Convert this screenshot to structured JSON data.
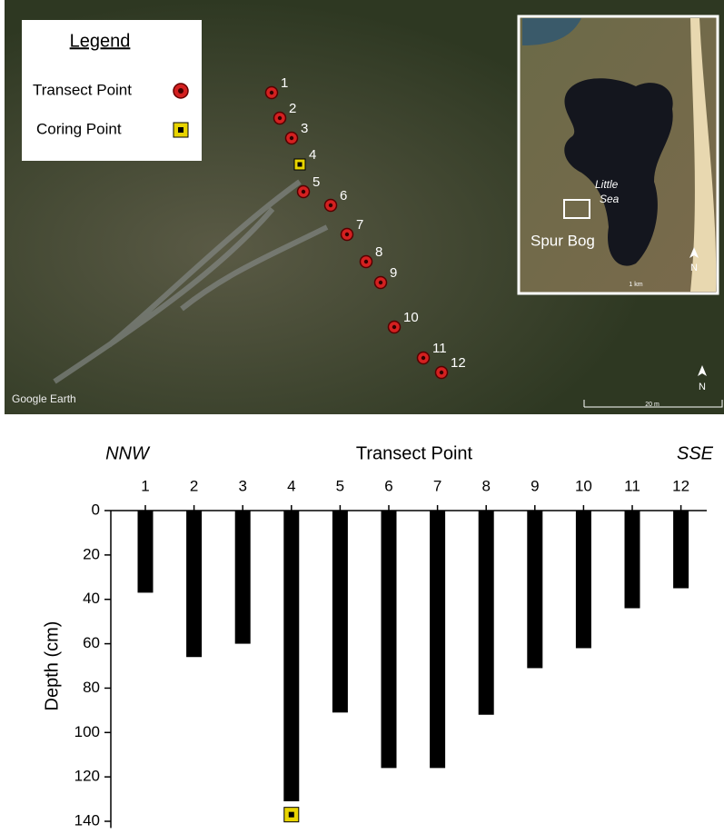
{
  "map": {
    "legend": {
      "title": "Legend",
      "items": [
        "Transect Point",
        "Coring Point"
      ]
    },
    "points": [
      "1",
      "2",
      "3",
      "4",
      "5",
      "6",
      "7",
      "8",
      "9",
      "10",
      "11",
      "12"
    ],
    "attribution": "Google Earth",
    "scale_label": "20 m",
    "north": "N",
    "inset": {
      "lake": [
        "Little",
        "Sea"
      ],
      "site": "Spur Bog",
      "scale_label": "1 km",
      "north": "N"
    }
  },
  "chart_data": {
    "type": "bar",
    "title": "Transect Point",
    "left_label": "NNW",
    "right_label": "SSE",
    "y_label": "Depth (cm)",
    "categories": [
      "1",
      "2",
      "3",
      "4",
      "5",
      "6",
      "7",
      "8",
      "9",
      "10",
      "11",
      "12"
    ],
    "values": [
      37,
      66,
      60,
      131,
      91,
      116,
      116,
      92,
      71,
      62,
      44,
      35
    ],
    "coring_depths": [
      null,
      null,
      null,
      137,
      null,
      null,
      null,
      null,
      null,
      null,
      null,
      null
    ],
    "color": "#000000",
    "ylim": [
      0,
      143
    ],
    "yticks": [
      0,
      20,
      40,
      60,
      80,
      100,
      120,
      140
    ],
    "y_inverted": true
  }
}
